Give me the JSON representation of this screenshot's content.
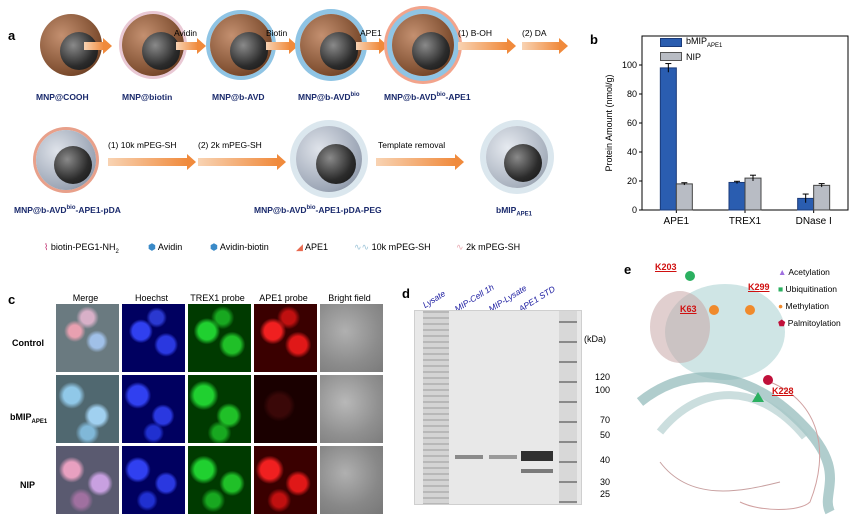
{
  "panel_a": {
    "letter": "a",
    "row1_steps": [
      "Avidin",
      "Biotin",
      "APE1",
      "(1) B-OH",
      "(2) DA"
    ],
    "row1_labels": [
      "MNP@COOH",
      "MNP@biotin",
      "MNP@b-AVD",
      "MNP@b-AVD",
      "MNP@b-AVD"
    ],
    "row1_label_sup": [
      "",
      "",
      "",
      "bio",
      "bio"
    ],
    "row1_label_suffix": [
      "",
      "",
      "",
      "",
      "-APE1"
    ],
    "row2_steps": [
      "(1) 10k mPEG-SH",
      "(2) 2k mPEG-SH",
      "Template removal"
    ],
    "row2_labels": [
      {
        "main": "MNP@b-AVD",
        "sup": "bio",
        "suffix": "-APE1-pDA"
      },
      {
        "main": "MNP@b-AVD",
        "sup": "bio",
        "suffix": "-APE1-pDA-PEG"
      },
      {
        "main": "bMIP",
        "sub": "APE1",
        "suffix": ""
      }
    ],
    "legend": [
      "biotin-PEG1-NH",
      "Avidin",
      "Avidin-biotin",
      "APE1",
      "10k mPEG-SH",
      "2k mPEG-SH"
    ],
    "legend_sub": "2"
  },
  "panel_b": {
    "letter": "b",
    "legend": [
      {
        "main": "bMIP",
        "sub": "APE1",
        "color": "#2a5db0"
      },
      {
        "main": "NIP",
        "sub": "",
        "color": "#b8bcc4"
      }
    ],
    "chart_data": {
      "type": "bar",
      "categories": [
        "APE1",
        "TREX1",
        "DNase I"
      ],
      "series": [
        {
          "name": "bMIP_APE1",
          "values": [
            98,
            19,
            8
          ],
          "errors": [
            3,
            0.8,
            3
          ]
        },
        {
          "name": "NIP",
          "values": [
            18,
            22,
            17
          ],
          "errors": [
            0.8,
            2,
            1.2
          ]
        }
      ],
      "ylabel": "Protein Amount (nmol/g)",
      "ylim": [
        0,
        120
      ],
      "yticks": [
        "0",
        "20",
        "40",
        "60",
        "80",
        "100"
      ],
      "ytick_values": [
        0,
        20,
        40,
        60,
        80,
        100
      ]
    }
  },
  "panel_c": {
    "letter": "c",
    "columns": [
      "Merge",
      "Hoechst",
      "TREX1 probe",
      "APE1 probe",
      "Bright field"
    ],
    "rows": [
      {
        "main": "Control",
        "sub": ""
      },
      {
        "main": "bMIP",
        "sub": "APE1"
      },
      {
        "main": "NIP",
        "sub": ""
      }
    ]
  },
  "panel_d": {
    "letter": "d",
    "lanes": [
      "Lysate",
      "MIP-Cell 1h",
      "MIP-Lysate",
      "APE1 STD"
    ],
    "unit": "(kDa)",
    "markers": [
      "120",
      "100",
      "70",
      "50",
      "40",
      "30",
      "25"
    ]
  },
  "panel_e": {
    "letter": "e",
    "sites": [
      "K203",
      "K299",
      "K63",
      "K228"
    ],
    "legend": [
      {
        "label": "Acetylation",
        "color": "#a070e0"
      },
      {
        "label": "Ubiquitination",
        "color": "#2bb060"
      },
      {
        "label": "Methylation",
        "color": "#f08a2c"
      },
      {
        "label": "Palmitoylation",
        "color": "#c0103a"
      }
    ]
  }
}
